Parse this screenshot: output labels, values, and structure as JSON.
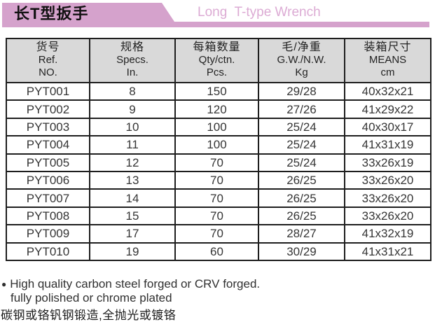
{
  "colors": {
    "banner_pink": "#d5a2cc",
    "title_en_pink": "#dcabd4",
    "header_gray": "#d9d9d9",
    "border_black": "#1e1e1e",
    "text_dark": "#353535"
  },
  "header": {
    "title_cn": "长T型扳手",
    "title_en": "Long  T-type Wrench"
  },
  "table": {
    "columns": [
      {
        "lines": [
          "货号",
          "Ref.",
          "NO."
        ]
      },
      {
        "lines": [
          "规格",
          "Specs.",
          "In."
        ]
      },
      {
        "lines": [
          "每箱数量",
          "Qty/ctn.",
          "Pcs."
        ]
      },
      {
        "lines": [
          "毛/净重",
          "G.W./N.W.",
          "Kg"
        ]
      },
      {
        "lines": [
          "装箱尺寸",
          "MEANS",
          "cm"
        ]
      }
    ],
    "rows": [
      [
        "PYT001",
        "8",
        "150",
        "29/28",
        "40x32x21"
      ],
      [
        "PYT002",
        "9",
        "120",
        "27/26",
        "41x29x22"
      ],
      [
        "PYT003",
        "10",
        "100",
        "25/24",
        "40x30x17"
      ],
      [
        "PYT004",
        "11",
        "100",
        "25/24",
        "41x31x19"
      ],
      [
        "PYT005",
        "12",
        "70",
        "25/24",
        "33x26x19"
      ],
      [
        "PYT006",
        "13",
        "70",
        "26/25",
        "33x26x20"
      ],
      [
        "PYT007",
        "14",
        "70",
        "26/25",
        "33x26x20"
      ],
      [
        "PYT008",
        "15",
        "70",
        "26/25",
        "33x26x20"
      ],
      [
        "PYT009",
        "17",
        "70",
        "28/27",
        "41x32x19"
      ],
      [
        "PYT010",
        "19",
        "60",
        "30/29",
        "41x31x21"
      ]
    ]
  },
  "notes": {
    "bullet": "●",
    "line1": "High quality carbon steel forged or CRV forged.",
    "line2": "fully polished or chrome plated",
    "line3": "碳钢或铬钒钢锻造,全抛光或镀铬"
  }
}
